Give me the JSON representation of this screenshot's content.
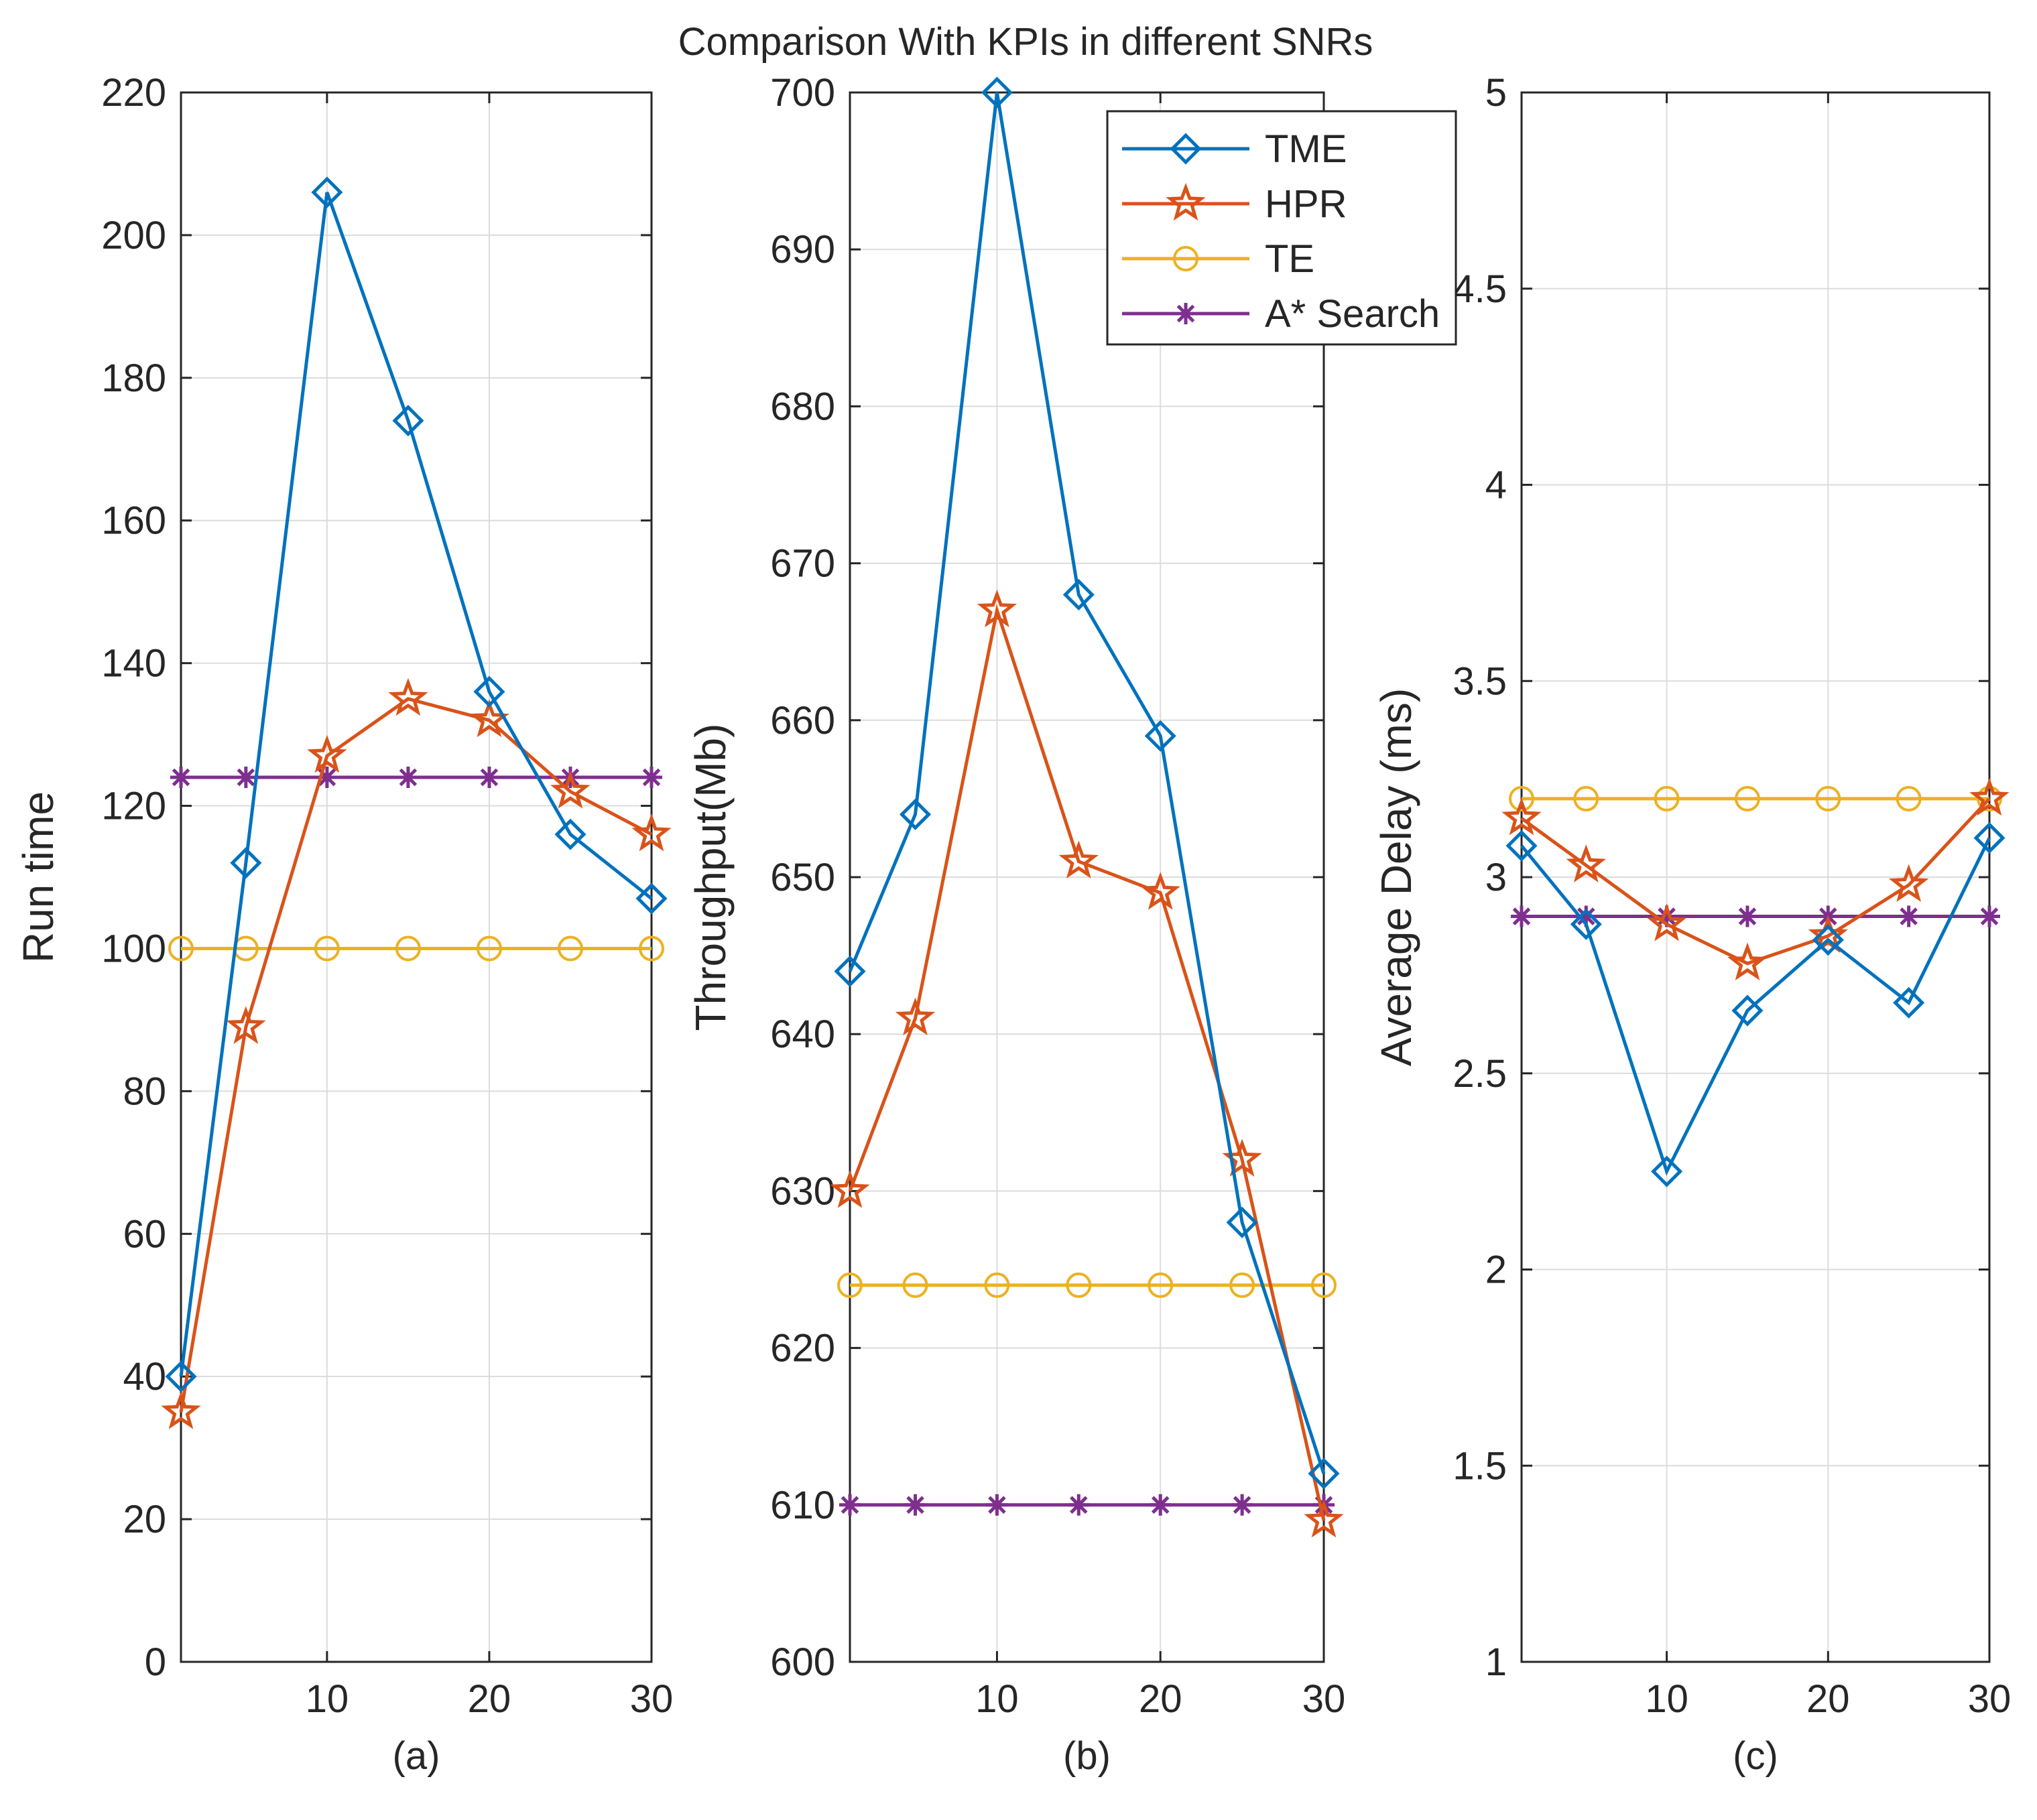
{
  "figure_title": "Comparison With KPIs in different SNRs",
  "colors": {
    "TME": "#0072BD",
    "HPR": "#D95319",
    "TE": "#EDB120",
    "A* Search": "#7E2F8E",
    "grid": "#dcdcdc",
    "axis": "#262626"
  },
  "legend": {
    "placement": "top-right of panel (b)",
    "entries": [
      {
        "label": "TME",
        "marker": "diamond"
      },
      {
        "label": "HPR",
        "marker": "star"
      },
      {
        "label": "TE",
        "marker": "circle"
      },
      {
        "label": "A* Search",
        "marker": "asterisk"
      }
    ]
  },
  "chart_data": [
    {
      "type": "line",
      "caption": "(a)",
      "title": "",
      "xlabel": "",
      "ylabel": "Run time",
      "x": [
        1,
        5,
        10,
        15,
        20,
        25,
        30
      ],
      "xlim": [
        1,
        30
      ],
      "xticks": [
        10,
        20,
        30
      ],
      "xtick_labels": [
        "10",
        "20",
        "30"
      ],
      "ylim": [
        0,
        220
      ],
      "yticks": [
        0,
        20,
        40,
        60,
        80,
        100,
        120,
        140,
        160,
        180,
        200,
        220
      ],
      "ytick_labels": [
        "0",
        "20",
        "40",
        "60",
        "80",
        "100",
        "120",
        "140",
        "160",
        "180",
        "200",
        "220"
      ],
      "grid": true,
      "series": [
        {
          "name": "TME",
          "marker": "diamond",
          "values": [
            40,
            112,
            206,
            174,
            136,
            116,
            107
          ]
        },
        {
          "name": "HPR",
          "marker": "star",
          "values": [
            35,
            89,
            127,
            135,
            132,
            122,
            116
          ]
        },
        {
          "name": "TE",
          "marker": "circle",
          "values": [
            100,
            100,
            100,
            100,
            100,
            100,
            100
          ]
        },
        {
          "name": "A* Search",
          "marker": "asterisk",
          "values": [
            124,
            124,
            124,
            124,
            124,
            124,
            124
          ]
        }
      ]
    },
    {
      "type": "line",
      "caption": "(b)",
      "title": "",
      "xlabel": "",
      "ylabel": "Throughput(Mb)",
      "x": [
        1,
        5,
        10,
        15,
        20,
        25,
        30
      ],
      "xlim": [
        1,
        30
      ],
      "xticks": [
        10,
        20,
        30
      ],
      "xtick_labels": [
        "10",
        "20",
        "30"
      ],
      "ylim": [
        600,
        700
      ],
      "yticks": [
        600,
        610,
        620,
        630,
        640,
        650,
        660,
        670,
        680,
        690,
        700
      ],
      "ytick_labels": [
        "600",
        "610",
        "620",
        "630",
        "640",
        "650",
        "660",
        "670",
        "680",
        "690",
        "700"
      ],
      "grid": true,
      "series": [
        {
          "name": "TME",
          "marker": "diamond",
          "values": [
            644,
            654,
            700,
            668,
            659,
            628,
            612
          ]
        },
        {
          "name": "HPR",
          "marker": "star",
          "values": [
            630,
            641,
            667,
            651,
            649,
            632,
            609
          ]
        },
        {
          "name": "TE",
          "marker": "circle",
          "values": [
            624,
            624,
            624,
            624,
            624,
            624,
            624
          ]
        },
        {
          "name": "A* Search",
          "marker": "asterisk",
          "values": [
            610,
            610,
            610,
            610,
            610,
            610,
            610
          ]
        }
      ]
    },
    {
      "type": "line",
      "caption": "(c)",
      "title": "",
      "xlabel": "",
      "ylabel": "Average Delay (ms)",
      "x": [
        1,
        5,
        10,
        15,
        20,
        25,
        30
      ],
      "xlim": [
        1,
        30
      ],
      "xticks": [
        10,
        20,
        30
      ],
      "xtick_labels": [
        "10",
        "20",
        "30"
      ],
      "ylim": [
        1,
        5
      ],
      "yticks": [
        1,
        1.5,
        2,
        2.5,
        3,
        3.5,
        4,
        4.5,
        5
      ],
      "ytick_labels": [
        "1",
        "1.5",
        "2",
        "2.5",
        "3",
        "3.5",
        "4",
        "4.5",
        "5"
      ],
      "grid": true,
      "series": [
        {
          "name": "TME",
          "marker": "diamond",
          "values": [
            3.08,
            2.88,
            2.25,
            2.66,
            2.84,
            2.68,
            3.1
          ]
        },
        {
          "name": "HPR",
          "marker": "star",
          "values": [
            3.15,
            3.03,
            2.88,
            2.78,
            2.85,
            2.98,
            3.2
          ]
        },
        {
          "name": "TE",
          "marker": "circle",
          "values": [
            3.2,
            3.2,
            3.2,
            3.2,
            3.2,
            3.2,
            3.2
          ]
        },
        {
          "name": "A* Search",
          "marker": "asterisk",
          "values": [
            2.9,
            2.9,
            2.9,
            2.9,
            2.9,
            2.9,
            2.9
          ]
        }
      ]
    }
  ]
}
